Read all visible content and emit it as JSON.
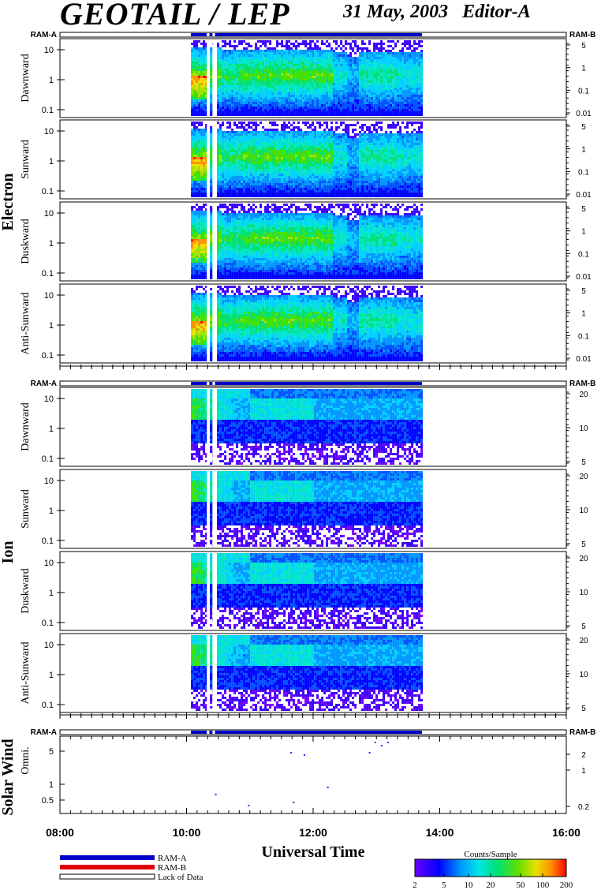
{
  "header": {
    "title": "GEOTAIL / LEP",
    "subtitle": "31 May, 2003   Editor-A"
  },
  "groups": [
    {
      "label": "Electron",
      "panels": [
        "Dawnward",
        "Sunward",
        "Duskward",
        "Anti-Sunward"
      ]
    },
    {
      "label": "Ion",
      "panels": [
        "Dawnward",
        "Sunward",
        "Duskward",
        "Anti-Sunward"
      ]
    },
    {
      "label": "Solar Wind",
      "panels": [
        "Omni."
      ]
    }
  ],
  "ram_labels": {
    "left": "RAM-A",
    "right": "RAM-B"
  },
  "x_axis": {
    "label": "Universal Time",
    "ticks": [
      "08:00",
      "10:00",
      "12:00",
      "14:00",
      "16:00"
    ]
  },
  "legend": {
    "ram_a": "RAM-A",
    "ram_b": "RAM-B",
    "lack": "Lack of Data",
    "colorbar_title": "Counts/Sample",
    "colorbar_ticks": [
      "2",
      "5",
      "10",
      "20",
      "50",
      "100",
      "200"
    ]
  },
  "colors": {
    "ram_a": "#0000c8",
    "ram_b": "#e00000"
  },
  "chart_data": {
    "type": "heatmap",
    "title": "GEOTAIL / LEP",
    "xlabel": "Universal Time",
    "x_range_hours": [
      8,
      16
    ],
    "data_coverage_hours": [
      10.07,
      13.72
    ],
    "data_gaps_hours": [
      [
        10.32,
        10.36
      ],
      [
        10.41,
        10.45
      ]
    ],
    "electron_left_ticks": [
      "10",
      "1",
      "0.1"
    ],
    "electron_right_ticks": [
      "5",
      "1",
      "0.1",
      "0.01"
    ],
    "ion_left_ticks": [
      "10",
      "1",
      "0.1"
    ],
    "ion_right_ticks": [
      "20",
      "10",
      "5"
    ],
    "solar_left_ticks": [
      "5",
      "1",
      "0.5"
    ],
    "solar_right_ticks": [
      "2",
      "1",
      "0.2"
    ],
    "colorbar": {
      "label": "Counts/Sample",
      "scale": "log",
      "range": [
        2,
        200
      ]
    }
  }
}
